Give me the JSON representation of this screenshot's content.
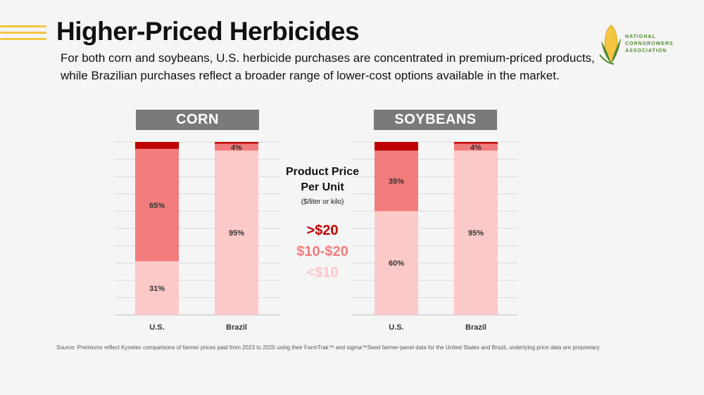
{
  "header": {
    "title": "Higher-Priced Herbicides",
    "subtitle": "For both corn and soybeans, U.S. herbicide purchases are concentrated in premium-priced products, while Brazilian purchases reflect a broader range of lower-cost options available in the market."
  },
  "logo": {
    "line1": "NATIONAL",
    "line2": "CORNGROWERS",
    "line3": "ASSOCIATION"
  },
  "legend": {
    "title_line1": "Product Price",
    "title_line2": "Per Unit",
    "subtitle": "($/liter or kilo)",
    "items": [
      {
        "label": ">$20",
        "color": "#c00000"
      },
      {
        "label": "$10-$20",
        "color": "#f27c7c"
      },
      {
        "label": "<$10",
        "color": "#fcc9c9"
      }
    ]
  },
  "source": "Source: Premiums reflect Kynetec comparisons of farmer prices paid from 2023 to 2025 using their FarmTrak™ and sigma™Seed farmer-panel data for the United States and Brazil, underlying price data are proprietary",
  "chart_data": [
    {
      "type": "bar",
      "stacked": true,
      "title": "CORN",
      "categories": [
        "U.S.",
        "Brazil"
      ],
      "ylim": [
        0,
        100
      ],
      "grid": true,
      "series": [
        {
          "name": "<$10",
          "color": "#fcc9c9",
          "values": [
            31,
            95
          ],
          "labels": [
            "31%",
            "95%"
          ]
        },
        {
          "name": "$10-$20",
          "color": "#f27c7c",
          "values": [
            65,
            4
          ],
          "labels": [
            "65%",
            "4%"
          ]
        },
        {
          "name": ">$20",
          "color": "#c00000",
          "values": [
            4,
            1
          ],
          "labels": [
            "",
            ""
          ]
        }
      ]
    },
    {
      "type": "bar",
      "stacked": true,
      "title": "SOYBEANS",
      "categories": [
        "U.S.",
        "Brazil"
      ],
      "ylim": [
        0,
        100
      ],
      "grid": true,
      "series": [
        {
          "name": "<$10",
          "color": "#fcc9c9",
          "values": [
            60,
            95
          ],
          "labels": [
            "60%",
            "95%"
          ]
        },
        {
          "name": "$10-$20",
          "color": "#f27c7c",
          "values": [
            35,
            4
          ],
          "labels": [
            "35%",
            "4%"
          ]
        },
        {
          "name": ">$20",
          "color": "#c00000",
          "values": [
            5,
            1
          ],
          "labels": [
            "",
            ""
          ]
        }
      ]
    }
  ]
}
